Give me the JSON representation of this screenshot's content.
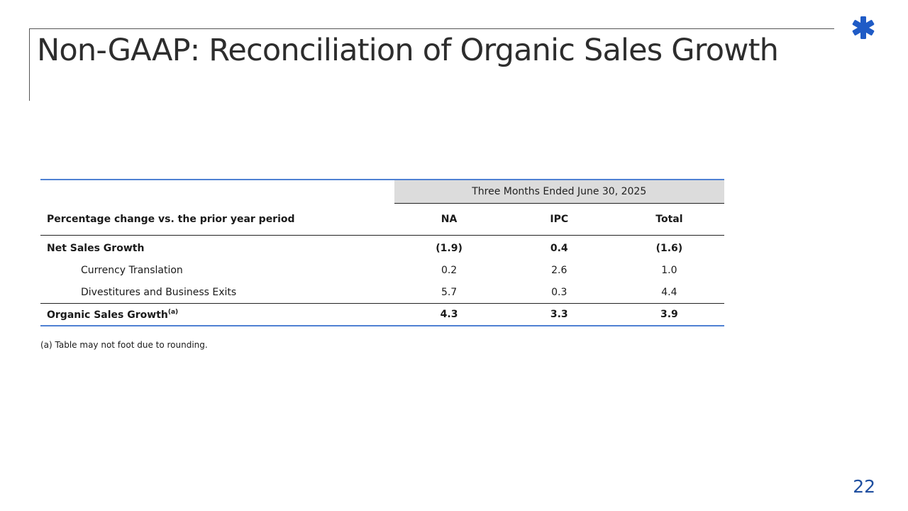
{
  "slide": {
    "title": "Non-GAAP: Reconciliation of Organic Sales Growth",
    "page_number": "22",
    "brand_color": "#1f5bc6",
    "accent_rule_color": "#4f81d3"
  },
  "logo": {
    "icon": "asterisk-logo-icon"
  },
  "table": {
    "period_header": "Three Months Ended June 30, 2025",
    "row_header": "Percentage change vs. the prior year period",
    "columns": [
      "NA",
      "IPC",
      "Total"
    ],
    "rows": [
      {
        "label": "Net Sales Growth",
        "values": [
          "(1.9)",
          "0.4",
          "(1.6)"
        ]
      },
      {
        "label": "Currency Translation",
        "values": [
          "0.2",
          "2.6",
          "1.0"
        ]
      },
      {
        "label": "Divestitures and Business Exits",
        "values": [
          "5.7",
          "0.3",
          "4.4"
        ]
      }
    ],
    "total": {
      "label": "Organic Sales Growth",
      "footnote_marker": "(a)",
      "values": [
        "4.3",
        "3.3",
        "3.9"
      ]
    }
  },
  "footnote": "(a) Table may not foot due to rounding."
}
